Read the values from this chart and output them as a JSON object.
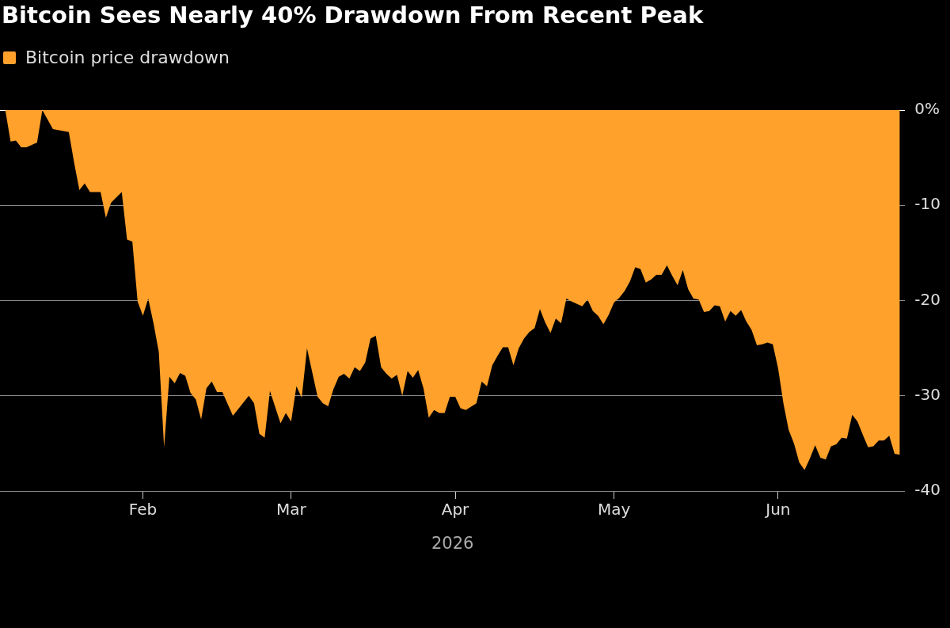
{
  "chart_data": {
    "type": "area",
    "title": "Bitcoin Sees Nearly 40% Drawdown From Recent Peak",
    "xlabel": "2026",
    "legend": "top left",
    "grid": "y",
    "xlim": [
      "2026-01-05",
      "2026-06-25"
    ],
    "xticks": [
      {
        "value": "2026-02-01",
        "label": "Feb"
      },
      {
        "value": "2026-03-01",
        "label": "Mar"
      },
      {
        "value": "2026-04-01",
        "label": "Apr"
      },
      {
        "value": "2026-05-01",
        "label": "May"
      },
      {
        "value": "2026-06-01",
        "label": "Jun"
      }
    ],
    "ylim": [
      -40,
      0
    ],
    "yticks": [
      {
        "value": 0,
        "label": "0%"
      },
      -10,
      -20,
      -30,
      -40
    ],
    "series": [
      {
        "name": "Bitcoin price drawdown",
        "color": "#ffa12b",
        "x": [
          "2026-01-06",
          "2026-01-07",
          "2026-01-08",
          "2026-01-09",
          "2026-01-10",
          "2026-01-12",
          "2026-01-13",
          "2026-01-15",
          "2026-01-17",
          "2026-01-18",
          "2026-01-19",
          "2026-01-20",
          "2026-01-21",
          "2026-01-22",
          "2026-01-24",
          "2026-01-25",
          "2026-01-26",
          "2026-01-28",
          "2026-01-29",
          "2026-01-30",
          "2026-01-31",
          "2026-02-01",
          "2026-02-02",
          "2026-02-03",
          "2026-02-04",
          "2026-02-05",
          "2026-02-06",
          "2026-02-07",
          "2026-02-08",
          "2026-02-09",
          "2026-02-10",
          "2026-02-11",
          "2026-02-12",
          "2026-02-13",
          "2026-02-14",
          "2026-02-15",
          "2026-02-16",
          "2026-02-18",
          "2026-02-21",
          "2026-02-22",
          "2026-02-23",
          "2026-02-24",
          "2026-02-25",
          "2026-02-27",
          "2026-02-28",
          "2026-03-01",
          "2026-03-02",
          "2026-03-03",
          "2026-03-04",
          "2026-03-06",
          "2026-03-07",
          "2026-03-08",
          "2026-03-09",
          "2026-03-10",
          "2026-03-11",
          "2026-03-12",
          "2026-03-13",
          "2026-03-14",
          "2026-03-15",
          "2026-03-16",
          "2026-03-17",
          "2026-03-18",
          "2026-03-19",
          "2026-03-20",
          "2026-03-21",
          "2026-03-22",
          "2026-03-23",
          "2026-03-24",
          "2026-03-25",
          "2026-03-26",
          "2026-03-27",
          "2026-03-28",
          "2026-03-29",
          "2026-03-30",
          "2026-03-31",
          "2026-04-01",
          "2026-04-02",
          "2026-04-03",
          "2026-04-05",
          "2026-04-06",
          "2026-04-07",
          "2026-04-08",
          "2026-04-09",
          "2026-04-10",
          "2026-04-11",
          "2026-04-12",
          "2026-04-13",
          "2026-04-14",
          "2026-04-15",
          "2026-04-16",
          "2026-04-17",
          "2026-04-18",
          "2026-04-19",
          "2026-04-20",
          "2026-04-21",
          "2026-04-22",
          "2026-04-23",
          "2026-04-25",
          "2026-04-26",
          "2026-04-27",
          "2026-04-28",
          "2026-04-29",
          "2026-04-30",
          "2026-05-01",
          "2026-05-02",
          "2026-05-03",
          "2026-05-04",
          "2026-05-05",
          "2026-05-06",
          "2026-05-07",
          "2026-05-08",
          "2026-05-09",
          "2026-05-10",
          "2026-05-11",
          "2026-05-12",
          "2026-05-13",
          "2026-05-14",
          "2026-05-15",
          "2026-05-16",
          "2026-05-17",
          "2026-05-18",
          "2026-05-19",
          "2026-05-20",
          "2026-05-21",
          "2026-05-22",
          "2026-05-23",
          "2026-05-24",
          "2026-05-25",
          "2026-05-26",
          "2026-05-27",
          "2026-05-28",
          "2026-05-29",
          "2026-05-30",
          "2026-05-31",
          "2026-06-01",
          "2026-06-02",
          "2026-06-03",
          "2026-06-04",
          "2026-06-05",
          "2026-06-06",
          "2026-06-07",
          "2026-06-08",
          "2026-06-09",
          "2026-06-10",
          "2026-06-11",
          "2026-06-12",
          "2026-06-13",
          "2026-06-14",
          "2026-06-15",
          "2026-06-16",
          "2026-06-17",
          "2026-06-18",
          "2026-06-19",
          "2026-06-20",
          "2026-06-21",
          "2026-06-22",
          "2026-06-23",
          "2026-06-24"
        ],
        "values": [
          0,
          -3.3,
          -3.2,
          -3.9,
          -3.9,
          -3.4,
          0,
          -2.0,
          -2.2,
          -2.3,
          -5.5,
          -8.4,
          -7.7,
          -8.6,
          -8.6,
          -11.3,
          -9.7,
          -8.6,
          -13.6,
          -13.8,
          -20.1,
          -21.6,
          -19.8,
          -22.4,
          -25.4,
          -35.4,
          -28.0,
          -28.7,
          -27.6,
          -27.9,
          -29.7,
          -30.4,
          -32.5,
          -29.2,
          -28.5,
          -29.6,
          -29.6,
          -32.1,
          -30.0,
          -30.8,
          -34.0,
          -34.4,
          -29.5,
          -32.9,
          -31.8,
          -32.7,
          -29.0,
          -30.2,
          -25.0,
          -30.1,
          -30.8,
          -31.1,
          -29.3,
          -28.0,
          -27.7,
          -28.2,
          -27.0,
          -27.4,
          -26.5,
          -24.0,
          -23.7,
          -27.0,
          -27.7,
          -28.2,
          -27.8,
          -30.0,
          -27.4,
          -28.1,
          -27.3,
          -29.2,
          -32.3,
          -31.5,
          -31.8,
          -31.8,
          -30.1,
          -30.1,
          -31.3,
          -31.5,
          -30.8,
          -28.5,
          -29.0,
          -26.8,
          -25.8,
          -24.9,
          -24.9,
          -26.8,
          -25.0,
          -24.0,
          -23.3,
          -22.9,
          -20.9,
          -22.3,
          -23.4,
          -21.9,
          -22.4,
          -19.8,
          -20.1,
          -20.6,
          -19.9,
          -21.1,
          -21.6,
          -22.5,
          -21.5,
          -20.2,
          -19.7,
          -19.0,
          -18.0,
          -16.5,
          -16.7,
          -18.1,
          -17.8,
          -17.3,
          -17.3,
          -16.3,
          -17.4,
          -18.4,
          -16.8,
          -18.8,
          -19.8,
          -19.9,
          -21.2,
          -21.1,
          -20.5,
          -20.6,
          -22.2,
          -21.1,
          -21.6,
          -21.0,
          -22.2,
          -23.1,
          -24.7,
          -24.6,
          -24.4,
          -24.6,
          -27.1,
          -30.8,
          -33.6,
          -35.0,
          -37.0,
          -37.8,
          -36.6,
          -35.2,
          -36.5,
          -36.7,
          -35.3,
          -35.1,
          -34.4,
          -34.5,
          -32.0,
          -32.7,
          -34.1,
          -35.4,
          -35.3,
          -34.7,
          -34.7,
          -34.2,
          -36.1,
          -36.2
        ]
      }
    ]
  }
}
